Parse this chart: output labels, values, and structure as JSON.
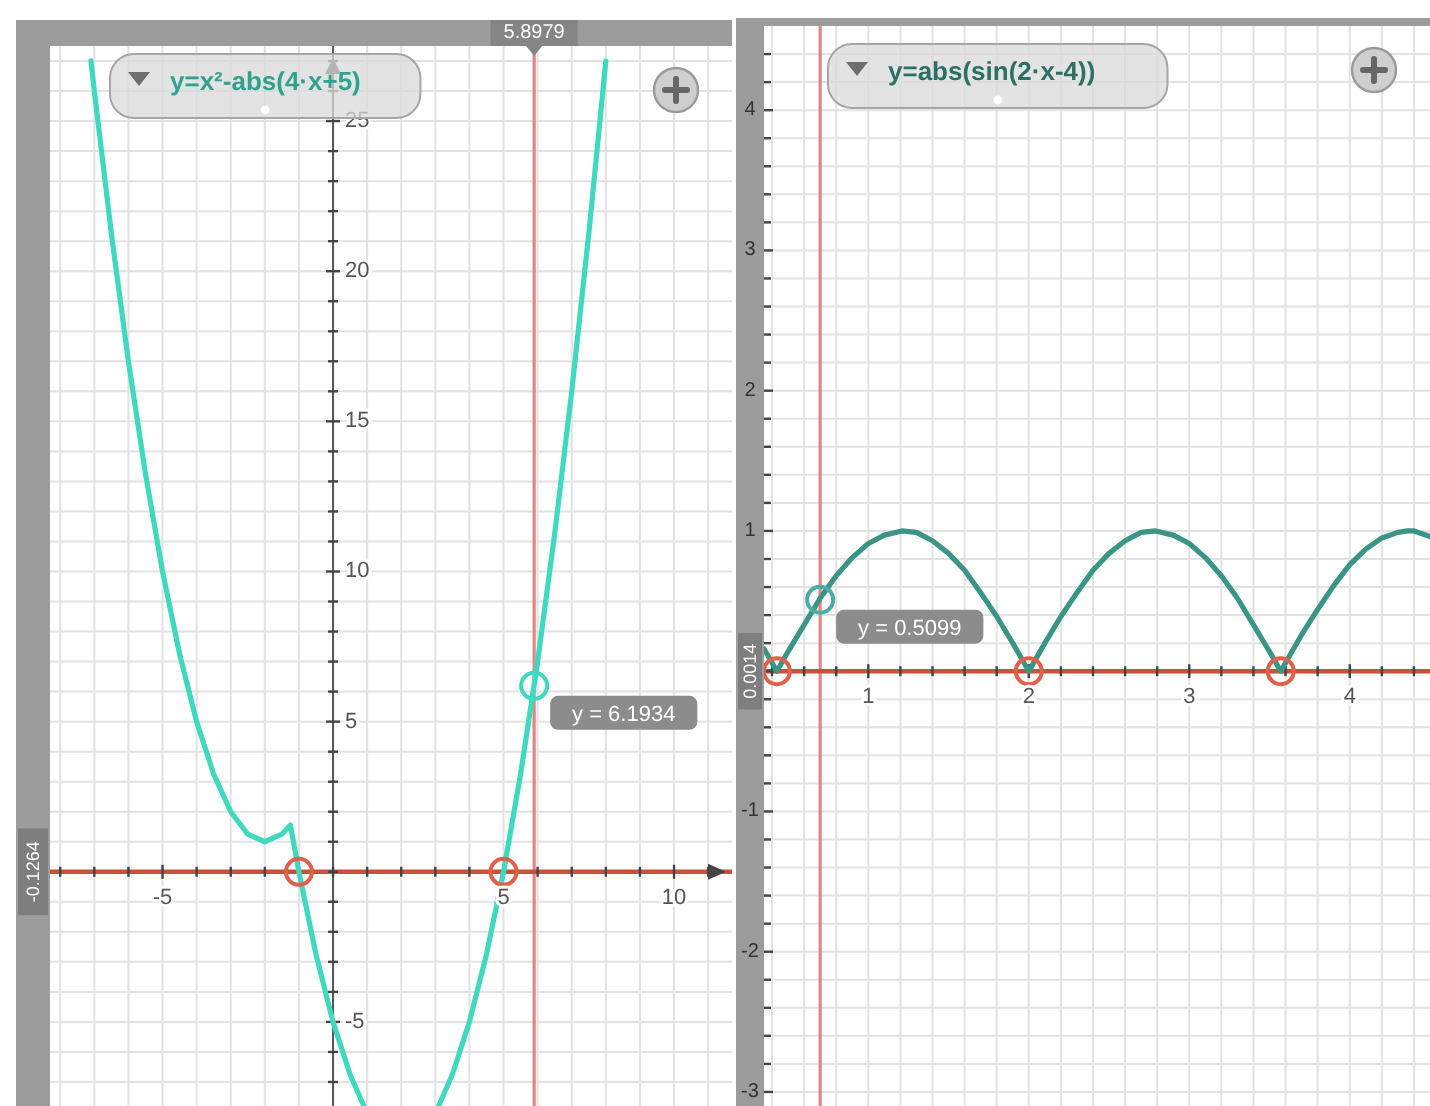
{
  "chart_data": [
    {
      "type": "line",
      "xlim": [
        -8.3,
        11.7
      ],
      "ylim": [
        -7.8,
        27.5
      ],
      "xticks": [
        {
          "value": -8,
          "label": null
        },
        {
          "value": -7,
          "label": null
        },
        {
          "value": -6,
          "label": null
        },
        -5,
        {
          "value": -4,
          "label": null
        },
        {
          "value": -3,
          "label": null
        },
        {
          "value": -2,
          "label": null
        },
        {
          "value": -1,
          "label": null
        },
        {
          "value": 0,
          "label": null
        },
        {
          "value": 1,
          "label": null
        },
        {
          "value": 2,
          "label": null
        },
        {
          "value": 3,
          "label": null
        },
        {
          "value": 4,
          "label": null
        },
        5,
        {
          "value": 6,
          "label": null
        },
        {
          "value": 7,
          "label": null
        },
        {
          "value": 8,
          "label": null
        },
        {
          "value": 9,
          "label": null
        },
        10,
        {
          "value": 11,
          "label": null
        }
      ],
      "yticks": [
        {
          "value": -7,
          "label": null
        },
        {
          "value": -6,
          "label": null
        },
        -5,
        {
          "value": -4,
          "label": null
        },
        {
          "value": -3,
          "label": null
        },
        {
          "value": -2,
          "label": null
        },
        {
          "value": -1,
          "label": null
        },
        {
          "value": 0,
          "label": null
        },
        {
          "value": 1,
          "label": null
        },
        {
          "value": 2,
          "label": null
        },
        {
          "value": 3,
          "label": null
        },
        {
          "value": 4,
          "label": null
        },
        5,
        {
          "value": 6,
          "label": null
        },
        {
          "value": 7,
          "label": null
        },
        {
          "value": 8,
          "label": null
        },
        {
          "value": 9,
          "label": null
        },
        10,
        {
          "value": 11,
          "label": null
        },
        {
          "value": 12,
          "label": null
        },
        {
          "value": 13,
          "label": null
        },
        {
          "value": 14,
          "label": null
        },
        15,
        {
          "value": 16,
          "label": null
        },
        {
          "value": 17,
          "label": null
        },
        {
          "value": 18,
          "label": null
        },
        {
          "value": 19,
          "label": null
        },
        20,
        {
          "value": 21,
          "label": null
        },
        {
          "value": 22,
          "label": null
        },
        {
          "value": 23,
          "label": null
        },
        {
          "value": 24,
          "label": null
        },
        25,
        {
          "value": 26,
          "label": null
        },
        {
          "value": 27,
          "label": null
        }
      ],
      "grid": true,
      "legend": "top left",
      "series": [
        {
          "name": "y=x²-abs(4·x+5)",
          "color": "#3fd9c0",
          "x": [
            -7.1,
            -7,
            -6.5,
            -6,
            -5.5,
            -5,
            -4.5,
            -4,
            -3.5,
            -3,
            -2.5,
            -2,
            -1.5,
            -1.25,
            -1,
            -0.5,
            0,
            0.5,
            0.9,
            2,
            3.1,
            3.5,
            4,
            4.5,
            5,
            5.5,
            6,
            6.5,
            7,
            7.5,
            8
          ],
          "values": [
            27.01,
            26,
            21.25,
            17,
            13.25,
            10,
            7.25,
            5,
            3.25,
            2,
            1.25,
            1,
            1.25,
            1.56,
            0,
            -2.75,
            -5,
            -6.75,
            -7.79,
            null,
            -7.79,
            -6.75,
            -5,
            -2.75,
            0,
            3.25,
            7,
            11.25,
            16,
            21.25,
            27
          ]
        },
        {
          "type": "scatter",
          "color": "#e0604c",
          "marker": "circle",
          "x": [
            -1,
            5
          ],
          "values": [
            0,
            0
          ]
        },
        {
          "type": "scatter",
          "color": "#3fd9c0",
          "marker": "circle",
          "x": [
            5.8979
          ],
          "values": [
            6.1934
          ],
          "value_labels": [
            "y = 6.1934"
          ]
        }
      ],
      "ref_lines": [
        {
          "axis": "x",
          "value": 5.8979,
          "label": "5.8979",
          "color": "#e38585"
        }
      ],
      "annotations": [
        "-0.1264"
      ]
    },
    {
      "type": "line",
      "xlim": [
        0.35,
        4.5
      ],
      "ylim": [
        -3.1,
        4.6
      ],
      "xticks": [
        {
          "value": 0.4,
          "label": null
        },
        {
          "value": 0.6,
          "label": null
        },
        {
          "value": 0.8,
          "label": null
        },
        1,
        {
          "value": 1.2,
          "label": null
        },
        {
          "value": 1.4,
          "label": null
        },
        {
          "value": 1.6,
          "label": null
        },
        {
          "value": 1.8,
          "label": null
        },
        2,
        {
          "value": 2.2,
          "label": null
        },
        {
          "value": 2.4,
          "label": null
        },
        {
          "value": 2.6,
          "label": null
        },
        {
          "value": 2.8,
          "label": null
        },
        3,
        {
          "value": 3.2,
          "label": null
        },
        {
          "value": 3.4,
          "label": null
        },
        {
          "value": 3.6,
          "label": null
        },
        {
          "value": 3.8,
          "label": null
        },
        4,
        {
          "value": 4.2,
          "label": null
        },
        {
          "value": 4.4,
          "label": null
        }
      ],
      "yticks": [
        -3,
        {
          "value": -2.8,
          "label": null
        },
        {
          "value": -2.6,
          "label": null
        },
        {
          "value": -2.4,
          "label": null
        },
        {
          "value": -2.2,
          "label": null
        },
        -2,
        {
          "value": -1.8,
          "label": null
        },
        {
          "value": -1.6,
          "label": null
        },
        {
          "value": -1.4,
          "label": null
        },
        {
          "value": -1.2,
          "label": null
        },
        -1,
        {
          "value": -0.8,
          "label": null
        },
        {
          "value": -0.6,
          "label": null
        },
        {
          "value": -0.4,
          "label": null
        },
        {
          "value": -0.2,
          "label": null
        },
        {
          "value": 0,
          "label": null
        },
        {
          "value": 0.2,
          "label": null
        },
        {
          "value": 0.4,
          "label": null
        },
        {
          "value": 0.6,
          "label": null
        },
        {
          "value": 0.8,
          "label": null
        },
        1,
        {
          "value": 1.2,
          "label": null
        },
        {
          "value": 1.4,
          "label": null
        },
        {
          "value": 1.6,
          "label": null
        },
        {
          "value": 1.8,
          "label": null
        },
        2,
        {
          "value": 2.2,
          "label": null
        },
        {
          "value": 2.4,
          "label": null
        },
        {
          "value": 2.6,
          "label": null
        },
        {
          "value": 2.8,
          "label": null
        },
        3,
        {
          "value": 3.2,
          "label": null
        },
        {
          "value": 3.4,
          "label": null
        },
        {
          "value": 3.6,
          "label": null
        },
        {
          "value": 3.8,
          "label": null
        },
        4,
        {
          "value": 4.2,
          "label": null
        },
        {
          "value": 4.4,
          "label": null
        }
      ],
      "grid": true,
      "legend": "top left",
      "series": [
        {
          "name": "y=abs(sin(2·x-4))",
          "color": "#3a9585",
          "x": [
            0.35,
            0.4,
            0.43,
            0.5,
            0.6,
            0.7,
            0.8,
            0.9,
            1,
            1.1,
            1.21,
            1.3,
            1.4,
            1.5,
            1.6,
            1.7,
            1.8,
            1.9,
            2,
            2.1,
            2.2,
            2.3,
            2.4,
            2.5,
            2.6,
            2.7,
            2.79,
            2.9,
            3,
            3.1,
            3.2,
            3.3,
            3.4,
            3.5,
            3.57,
            3.6,
            3.7,
            3.8,
            3.9,
            4,
            4.1,
            4.2,
            4.3,
            4.36,
            4.4,
            4.5
          ],
          "values": [
            0.16,
            0.06,
            0,
            0.14,
            0.33,
            0.52,
            0.68,
            0.81,
            0.91,
            0.97,
            1,
            0.99,
            0.93,
            0.84,
            0.72,
            0.56,
            0.39,
            0.2,
            0,
            0.2,
            0.39,
            0.56,
            0.72,
            0.84,
            0.93,
            0.99,
            1,
            0.97,
            0.91,
            0.81,
            0.68,
            0.52,
            0.33,
            0.14,
            0,
            0.06,
            0.26,
            0.44,
            0.61,
            0.76,
            0.87,
            0.95,
            0.99,
            1,
            1,
            0.96
          ]
        },
        {
          "type": "scatter",
          "color": "#e0604c",
          "marker": "circle",
          "x": [
            0.43,
            2,
            3.57
          ],
          "values": [
            0,
            0,
            0
          ]
        },
        {
          "type": "scatter",
          "color": "#4aaea4",
          "marker": "circle",
          "x": [
            0.7
          ],
          "values": [
            0.5099
          ],
          "value_labels": [
            "y = 0.5099"
          ]
        }
      ],
      "ref_lines": [
        {
          "axis": "x",
          "value": 0.7,
          "color": "#e38585"
        }
      ],
      "annotations": [
        "0.0014"
      ]
    }
  ]
}
